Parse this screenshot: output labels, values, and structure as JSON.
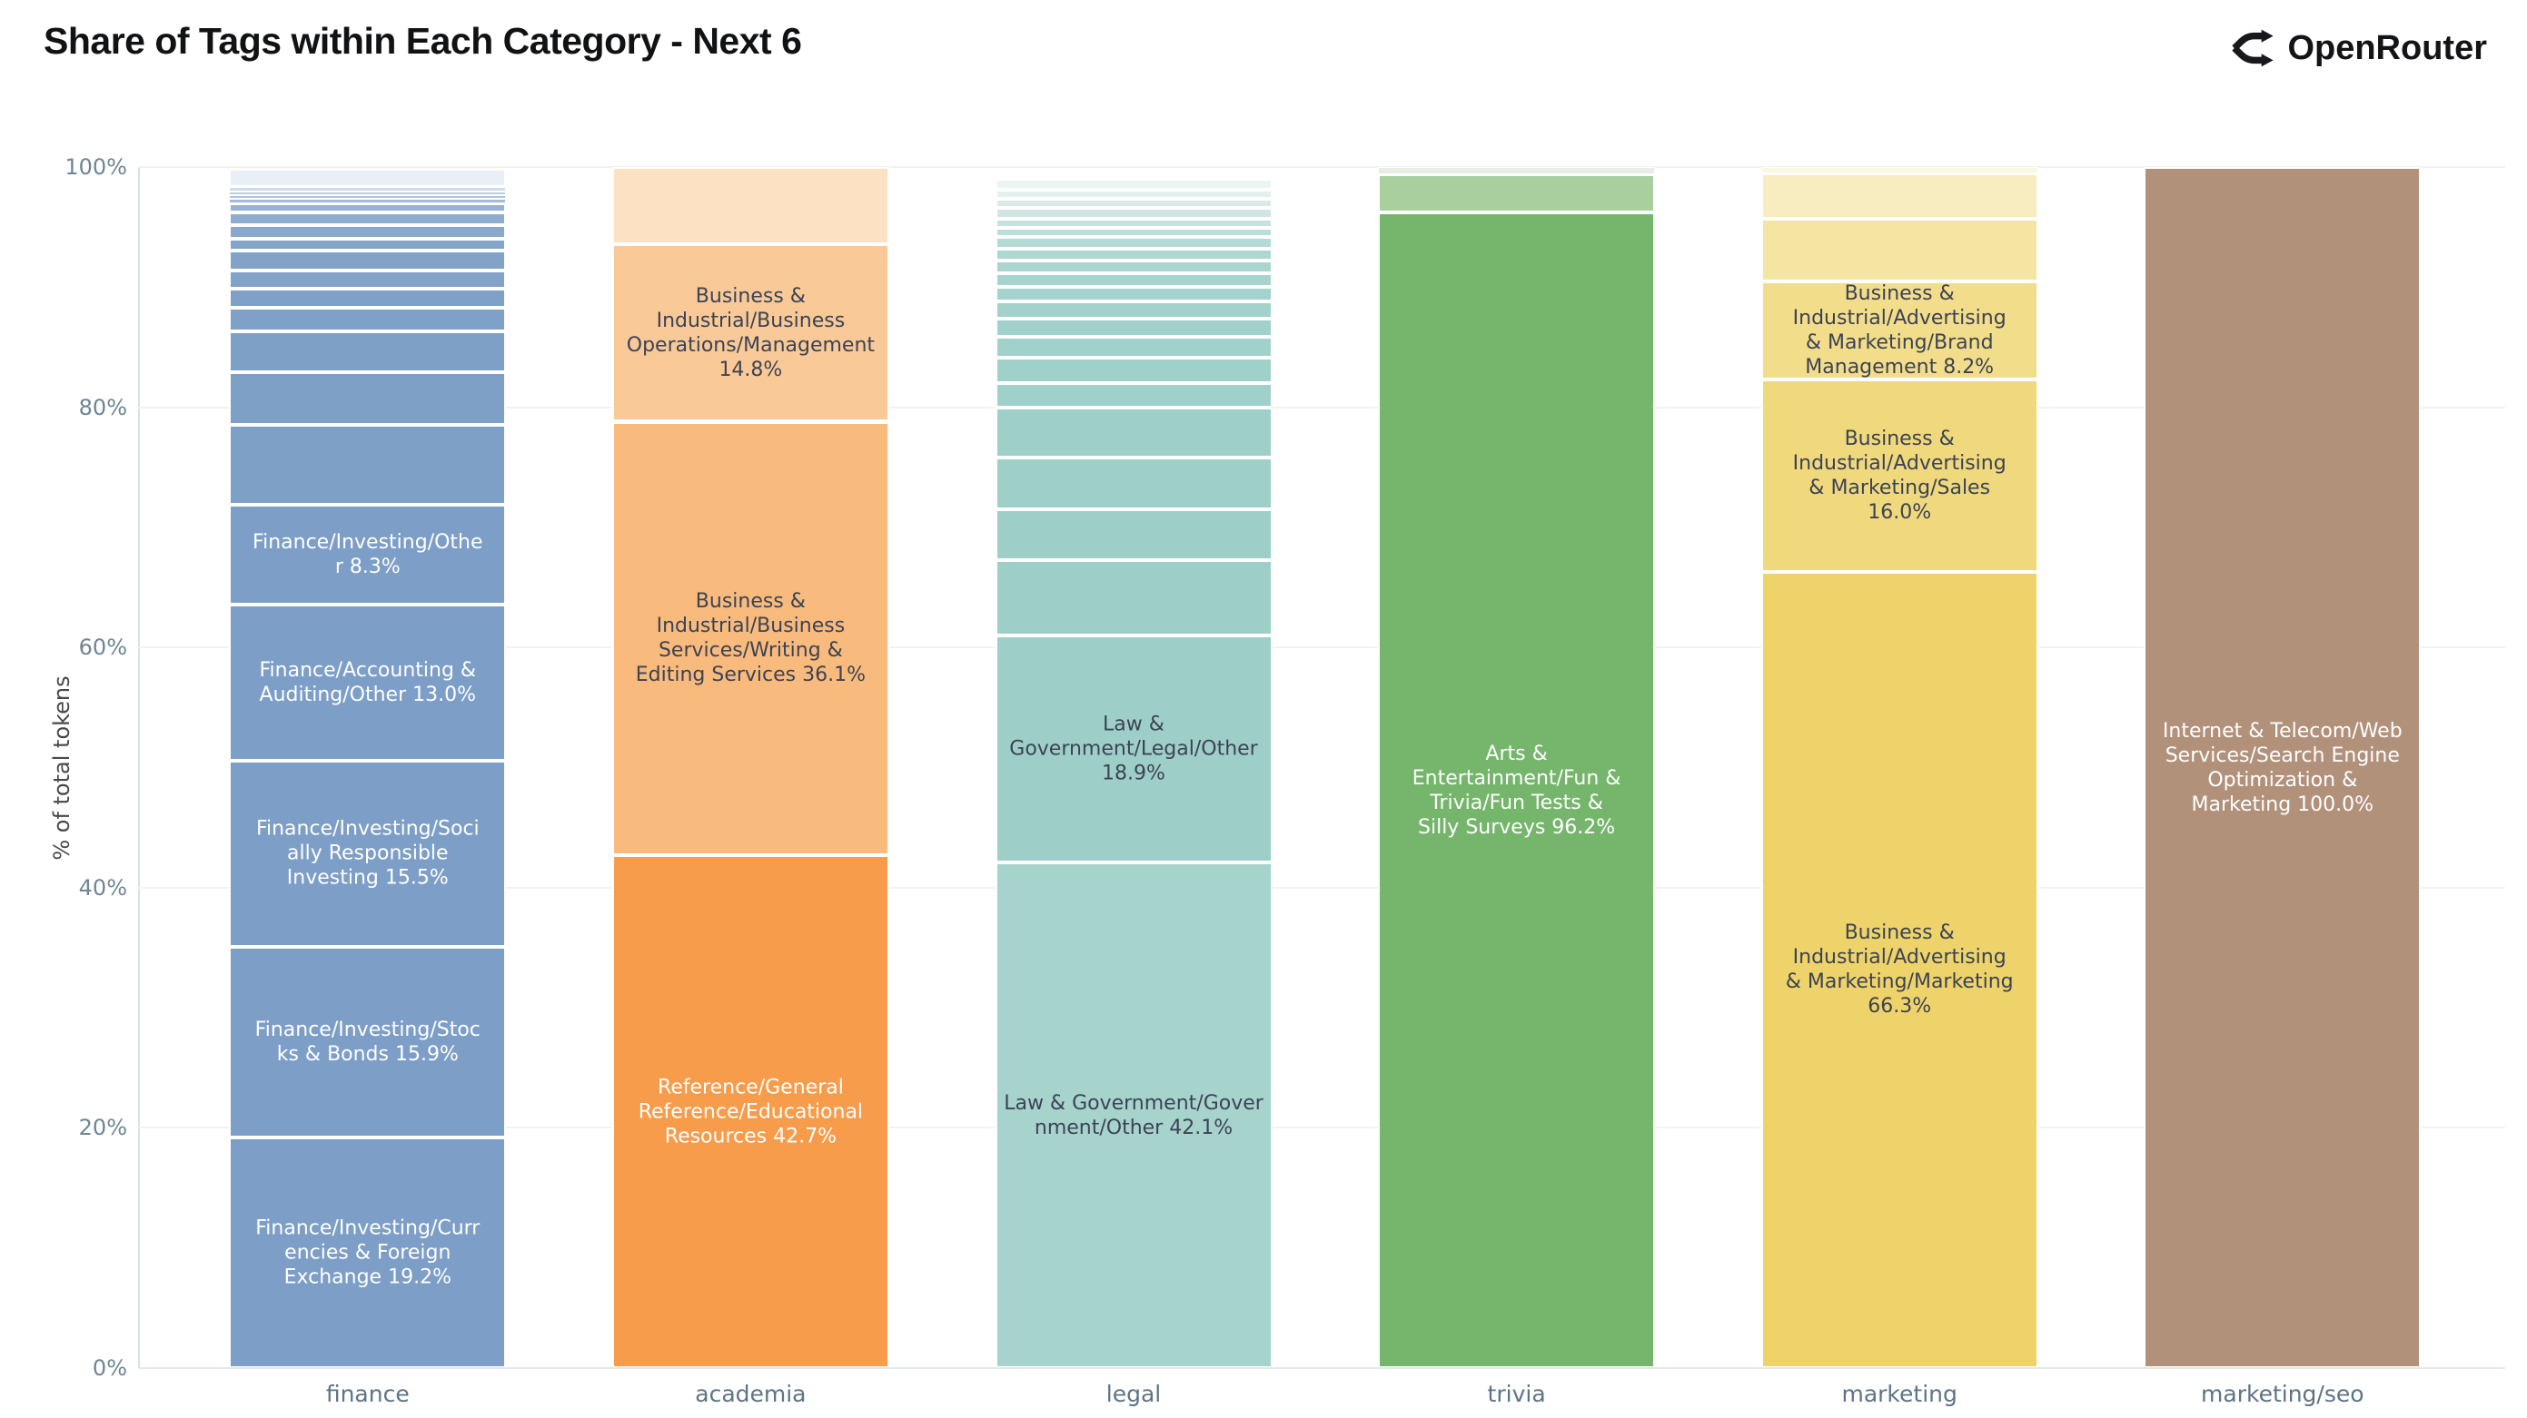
{
  "header": {
    "title": "Share of Tags within Each Category - Next 6",
    "brand": "OpenRouter"
  },
  "colors": {
    "grid": "#f2f2f2",
    "axis_line": "#d8e1e8",
    "tick_text": "#6d8596",
    "category_text": "#5d7486",
    "dark_label": "#3c4354",
    "light_label": "#ffffff"
  },
  "chart_data": {
    "type": "bar",
    "mode": "stacked",
    "title": "Share of Tags within Each Category - Next 6",
    "ylabel": "% of total tokens",
    "ylim": [
      0,
      100
    ],
    "grid": true,
    "yticks": [
      {
        "label": "0%",
        "value": 0
      },
      {
        "label": "20%",
        "value": 20
      },
      {
        "label": "40%",
        "value": 40
      },
      {
        "label": "60%",
        "value": 60
      },
      {
        "label": "80%",
        "value": 80
      },
      {
        "label": "100%",
        "value": 100
      }
    ],
    "categories": [
      "finance",
      "academia",
      "legal",
      "trivia",
      "marketing",
      "marketing/seo"
    ],
    "bars": [
      {
        "category": "finance",
        "segments": [
          {
            "value": 19.2,
            "color": "#7d9ec6",
            "label": "Finance/Investing/Curr\nencies & Foreign\nExchange 19.2%",
            "label_color": "#ffffff"
          },
          {
            "value": 15.9,
            "color": "#7d9ec6",
            "label": "Finance/Investing/Stoc\nks & Bonds 15.9%",
            "label_color": "#ffffff"
          },
          {
            "value": 15.5,
            "color": "#7d9ec6",
            "label": "Finance/Investing/Soci\nally Responsible\nInvesting 15.5%",
            "label_color": "#ffffff"
          },
          {
            "value": 13.0,
            "color": "#7d9ec6",
            "label": "Finance/Accounting &\nAuditing/Other 13.0%",
            "label_color": "#ffffff"
          },
          {
            "value": 8.3,
            "color": "#7d9ec6",
            "label": "Finance/Investing/Othe\nr 8.3%",
            "label_color": "#ffffff"
          },
          {
            "value": 6.65,
            "color": "#7e9fc6",
            "label": "",
            "label_color": ""
          },
          {
            "value": 4.4,
            "color": "#7e9fc6",
            "label": "",
            "label_color": ""
          },
          {
            "value": 3.4,
            "color": "#7e9fc6",
            "label": "",
            "label_color": ""
          },
          {
            "value": 1.9,
            "color": "#7fa0c7",
            "label": "",
            "label_color": ""
          },
          {
            "value": 1.65,
            "color": "#7fa0c7",
            "label": "",
            "label_color": ""
          },
          {
            "value": 1.5,
            "color": "#82a2c8",
            "label": "",
            "label_color": ""
          },
          {
            "value": 1.65,
            "color": "#82a2c8",
            "label": "",
            "label_color": ""
          },
          {
            "value": 1.0,
            "color": "#86a5ca",
            "label": "",
            "label_color": ""
          },
          {
            "value": 1.15,
            "color": "#8aa8cc",
            "label": "",
            "label_color": ""
          },
          {
            "value": 1.05,
            "color": "#90adcf",
            "label": "",
            "label_color": ""
          },
          {
            "value": 0.75,
            "color": "#97b2d2",
            "label": "",
            "label_color": ""
          },
          {
            "value": 0.38,
            "color": "#a1bad6",
            "label": "",
            "label_color": ""
          },
          {
            "value": 0.3,
            "color": "#aec3dc",
            "label": "",
            "label_color": ""
          },
          {
            "value": 0.3,
            "color": "#bccde2",
            "label": "",
            "label_color": ""
          },
          {
            "value": 0.38,
            "color": "#cfdbe9",
            "label": "",
            "label_color": ""
          },
          {
            "value": 1.5,
            "color": "#e9eff6",
            "label": "",
            "label_color": ""
          }
        ]
      },
      {
        "category": "academia",
        "segments": [
          {
            "value": 42.7,
            "color": "#f69c4b",
            "label": "Reference/General\nReference/Educational\nResources 42.7%",
            "label_color": "#ffffff"
          },
          {
            "value": 36.1,
            "color": "#f8ba7d",
            "label": "Business &\nIndustrial/Business\nServices/Writing &\nEditing Services 36.1%",
            "label_color": "#3c4354"
          },
          {
            "value": 14.8,
            "color": "#f9c997",
            "label": "Business &\nIndustrial/Business\nOperations/Management\n14.8%",
            "label_color": "#3c4354"
          },
          {
            "value": 6.4,
            "color": "#fce2c2",
            "label": "",
            "label_color": ""
          }
        ]
      },
      {
        "category": "legal",
        "segments": [
          {
            "value": 42.1,
            "color": "#a6d3cc",
            "label": "Law & Government/Gover\nnment/Other 42.1%",
            "label_color": "#3c4354"
          },
          {
            "value": 18.9,
            "color": "#9dcfc8",
            "label": "Law &\nGovernment/Legal/Other\n18.9%",
            "label_color": "#3c4354"
          },
          {
            "value": 6.25,
            "color": "#9dcfc8",
            "label": "",
            "label_color": ""
          },
          {
            "value": 4.25,
            "color": "#9dcfc8",
            "label": "",
            "label_color": ""
          },
          {
            "value": 4.3,
            "color": "#9ed0c9",
            "label": "",
            "label_color": ""
          },
          {
            "value": 4.15,
            "color": "#9ed0c9",
            "label": "",
            "label_color": ""
          },
          {
            "value": 2.05,
            "color": "#9fd0c9",
            "label": "",
            "label_color": ""
          },
          {
            "value": 2.1,
            "color": "#9fd0c9",
            "label": "",
            "label_color": ""
          },
          {
            "value": 1.75,
            "color": "#a0d1ca",
            "label": "",
            "label_color": ""
          },
          {
            "value": 1.5,
            "color": "#a0d1ca",
            "label": "",
            "label_color": ""
          },
          {
            "value": 1.45,
            "color": "#a2d2cb",
            "label": "",
            "label_color": ""
          },
          {
            "value": 1.2,
            "color": "#a4d2cc",
            "label": "",
            "label_color": ""
          },
          {
            "value": 1.15,
            "color": "#a7d4ce",
            "label": "",
            "label_color": ""
          },
          {
            "value": 1.05,
            "color": "#aad5cf",
            "label": "",
            "label_color": ""
          },
          {
            "value": 1.0,
            "color": "#aed7d1",
            "label": "",
            "label_color": ""
          },
          {
            "value": 1.0,
            "color": "#b4dad5",
            "label": "",
            "label_color": ""
          },
          {
            "value": 0.75,
            "color": "#bcdED9",
            "label": "",
            "label_color": ""
          },
          {
            "value": 0.75,
            "color": "#c5e2dd",
            "label": "",
            "label_color": ""
          },
          {
            "value": 0.9,
            "color": "#cfe6e2",
            "label": "",
            "label_color": ""
          },
          {
            "value": 0.75,
            "color": "#daebe7",
            "label": "",
            "label_color": ""
          },
          {
            "value": 0.75,
            "color": "#e4f0ed",
            "label": "",
            "label_color": ""
          },
          {
            "value": 0.9,
            "color": "#edf5f3",
            "label": "",
            "label_color": ""
          }
        ]
      },
      {
        "category": "trivia",
        "segments": [
          {
            "value": 96.2,
            "color": "#76b56c",
            "label": "Arts &\nEntertainment/Fun &\nTrivia/Fun Tests &\nSilly Surveys 96.2%",
            "label_color": "#ffffff"
          },
          {
            "value": 3.2,
            "color": "#a9cf9e",
            "label": "",
            "label_color": ""
          },
          {
            "value": 0.6,
            "color": "#e6f0e2",
            "label": "",
            "label_color": ""
          }
        ]
      },
      {
        "category": "marketing",
        "segments": [
          {
            "value": 66.3,
            "color": "#eed36b",
            "label": "Business &\nIndustrial/Advertising\n& Marketing/Marketing\n66.3%",
            "label_color": "#3c4354"
          },
          {
            "value": 16.0,
            "color": "#f0d87d",
            "label": "Business &\nIndustrial/Advertising\n& Marketing/Sales\n16.0%",
            "label_color": "#3c4354"
          },
          {
            "value": 8.2,
            "color": "#f2dd8b",
            "label": "Business &\nIndustrial/Advertising\n& Marketing/Brand\nManagement 8.2%",
            "label_color": "#3c4354"
          },
          {
            "value": 5.2,
            "color": "#f5e5a2",
            "label": "",
            "label_color": ""
          },
          {
            "value": 3.8,
            "color": "#f8edc0",
            "label": "",
            "label_color": ""
          },
          {
            "value": 0.5,
            "color": "#fcf7e2",
            "label": "",
            "label_color": ""
          }
        ]
      },
      {
        "category": "marketing/seo",
        "segments": [
          {
            "value": 100.0,
            "color": "#b2917b",
            "label": "Internet & Telecom/Web\nServices/Search Engine\nOptimization &\nMarketing 100.0%",
            "label_color": "#ffffff"
          }
        ]
      }
    ]
  }
}
